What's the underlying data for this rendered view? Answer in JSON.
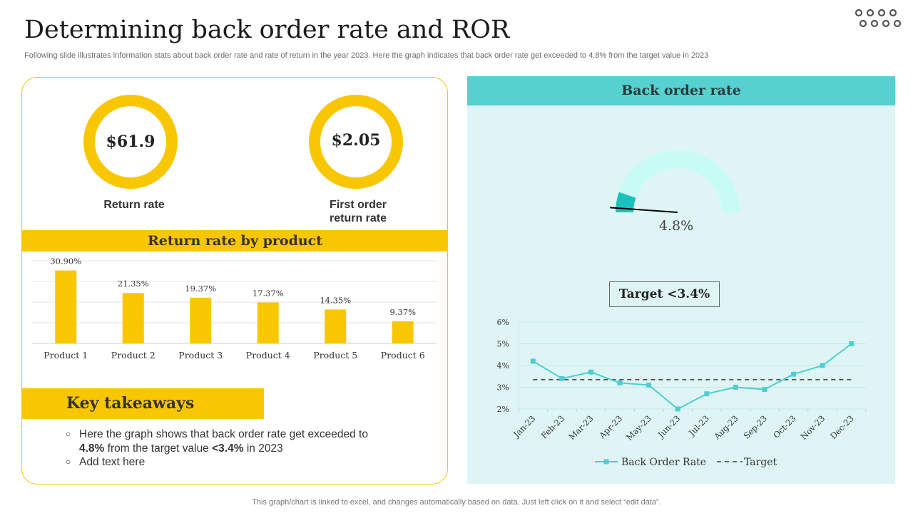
{
  "header": {
    "title": "Determining back order rate and ROR",
    "subtitle": "Following slide illustrates information stats about back order rate and rate of return in the year 2023. Here the graph indicates that back order rate get exceeded to 4.8% from the target value in 2023"
  },
  "kpis": [
    {
      "value": "$61.9",
      "label": "Return rate"
    },
    {
      "value": "$2.05",
      "label": "First order return rate"
    }
  ],
  "product_section": {
    "title": "Return rate by product"
  },
  "key_takeaways": {
    "title": "Key takeaways",
    "item1_pre": "Here the graph shows that back order rate get exceeded to",
    "item1_bold1": "4.8%",
    "item1_mid": " from the target value ",
    "item1_bold2": "<3.4%",
    "item1_post": " in 2023",
    "item2": "Add text here"
  },
  "back_order": {
    "title": "Back order rate",
    "gauge_value": "4.8%",
    "gauge_fraction": 0.048,
    "target_label": "Target <3.4%"
  },
  "footer": "This graph/chart is linked to excel, and changes automatically based on data. Just left click on it and select “edit data”.",
  "colors": {
    "yellow": "#f9c701",
    "teal": "#55d1cf",
    "line": "#4ccfd0",
    "gauge_light": "#c6fbf6",
    "gauge_dark": "#19c2bb"
  },
  "chart_data": [
    {
      "type": "bar",
      "categories": [
        "Product 1",
        "Product 2",
        "Product 3",
        "Product 4",
        "Product 5",
        "Product 6"
      ],
      "values": [
        30.9,
        21.35,
        19.37,
        17.37,
        14.35,
        9.37
      ],
      "labels": [
        "30.90%",
        "21.35%",
        "19.37%",
        "17.37%",
        "14.35%",
        "9.37%"
      ],
      "ylim": [
        0,
        35
      ],
      "grid": true,
      "color": "#f9c701"
    },
    {
      "type": "line",
      "categories": [
        "Jan-23",
        "Feb-23",
        "Mar-23",
        "Apr-23",
        "May-23",
        "Jun-23",
        "Jul-23",
        "Aug-23",
        "Sep-23",
        "Oct-23",
        "Nov-23",
        "Dec-23"
      ],
      "series": [
        {
          "name": "Back Order Rate",
          "values": [
            4.2,
            3.4,
            3.7,
            3.2,
            3.1,
            2.0,
            2.7,
            3.0,
            2.9,
            3.6,
            4.0,
            5.0
          ]
        },
        {
          "name": "Target",
          "values": [
            3.35,
            3.35,
            3.35,
            3.35,
            3.35,
            3.35,
            3.35,
            3.35,
            3.35,
            3.35,
            3.35,
            3.35
          ]
        }
      ],
      "yticks": [
        "2%",
        "3%",
        "4%",
        "5%",
        "6%"
      ],
      "ylim": [
        2,
        6
      ],
      "grid": true,
      "legend": "bottom"
    }
  ]
}
